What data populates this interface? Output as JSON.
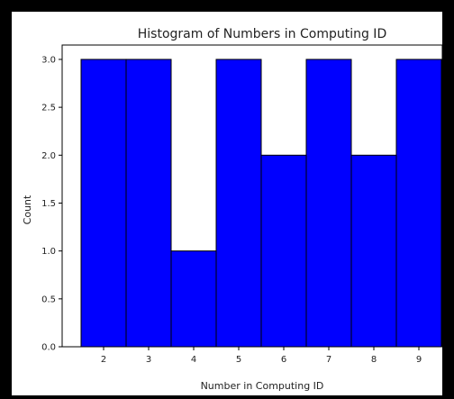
{
  "chart_data": {
    "type": "bar",
    "title": "Histogram of Numbers in Computing ID",
    "xlabel": "Number in Computing ID",
    "ylabel": "Count",
    "categories": [
      "2",
      "3",
      "4",
      "5",
      "6",
      "7",
      "8",
      "9"
    ],
    "values": [
      3,
      3,
      1,
      3,
      2,
      3,
      2,
      3
    ],
    "ylim": [
      0,
      3.15
    ],
    "yticks": [
      "0.0",
      "0.5",
      "1.0",
      "1.5",
      "2.0",
      "2.5",
      "3.0"
    ],
    "bar_color": "#0000ff",
    "edge_color": "#000000",
    "grid": false
  }
}
